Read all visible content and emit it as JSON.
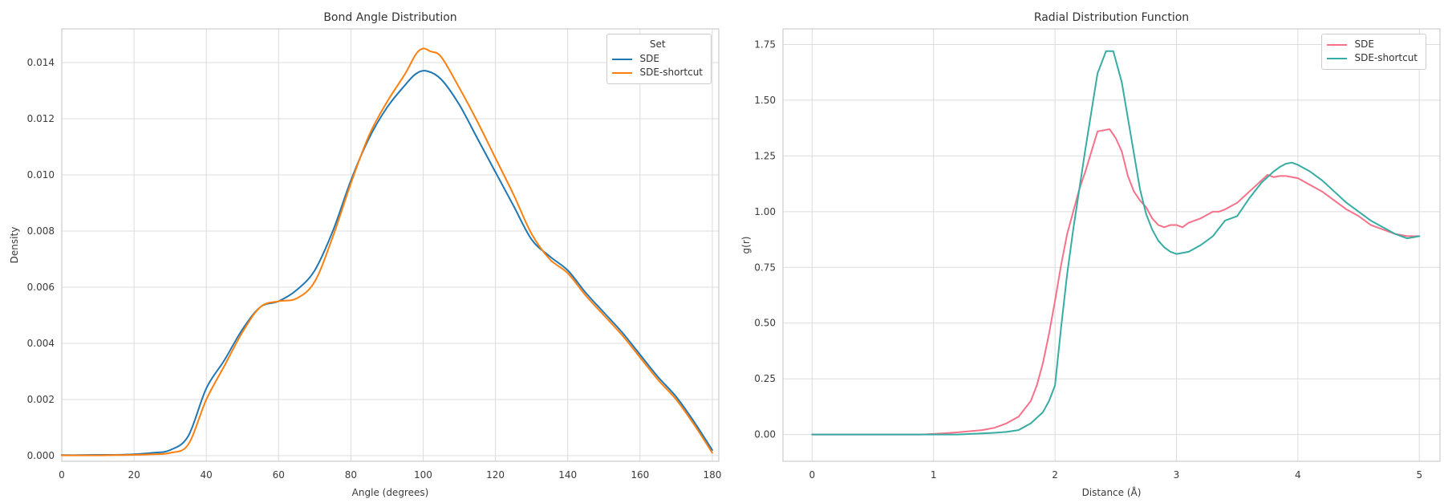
{
  "app": {
    "background": "#ffffff",
    "grid_color": "#dcdcdc",
    "spine_color": "#cccccc"
  },
  "chart_data": [
    {
      "type": "line",
      "title": "Bond Angle Distribution",
      "xlabel": "Angle (degrees)",
      "ylabel": "Density",
      "xlim": [
        0,
        181.8
      ],
      "ylim": [
        -0.0002,
        0.0152
      ],
      "grid": true,
      "smooth": true,
      "legend": {
        "title": "Set",
        "loc": "upper right",
        "entries": [
          {
            "label": "SDE",
            "color": "#1f77b4"
          },
          {
            "label": "SDE-shortcut",
            "color": "#ff7f0e"
          }
        ]
      },
      "xticks": {
        "values": [
          0,
          20,
          40,
          60,
          80,
          100,
          120,
          140,
          160,
          180
        ],
        "labels": [
          "0",
          "20",
          "40",
          "60",
          "80",
          "100",
          "120",
          "140",
          "160",
          "180"
        ]
      },
      "yticks": {
        "values": [
          0,
          0.002,
          0.004,
          0.006,
          0.008,
          0.01,
          0.012,
          0.014
        ],
        "labels": [
          "0.000",
          "0.002",
          "0.004",
          "0.006",
          "0.008",
          "0.010",
          "0.012",
          "0.014"
        ]
      },
      "series": [
        {
          "name": "SDE",
          "color": "#1f77b4",
          "x": [
            0,
            5,
            10,
            15,
            20,
            25,
            30,
            35,
            40,
            45,
            50,
            55,
            60,
            65,
            70,
            75,
            80,
            85,
            90,
            95,
            98,
            101,
            105,
            110,
            115,
            120,
            125,
            130,
            135,
            140,
            145,
            150,
            155,
            160,
            165,
            170,
            175,
            180
          ],
          "y": [
            2e-05,
            2e-05,
            3e-05,
            3e-05,
            5e-05,
            0.0001,
            0.0002,
            0.0007,
            0.0024,
            0.0034,
            0.0045,
            0.0053,
            0.0055,
            0.0059,
            0.0066,
            0.008,
            0.0098,
            0.0113,
            0.0124,
            0.0132,
            0.0136,
            0.0137,
            0.0134,
            0.0125,
            0.0113,
            0.0101,
            0.0089,
            0.0077,
            0.0071,
            0.0066,
            0.0058,
            0.0051,
            0.0044,
            0.0036,
            0.0028,
            0.0021,
            0.0012,
            0.0002
          ]
        },
        {
          "name": "SDE-shortcut",
          "color": "#ff7f0e",
          "x": [
            0,
            5,
            10,
            15,
            20,
            25,
            30,
            35,
            40,
            45,
            50,
            55,
            60,
            65,
            70,
            75,
            80,
            85,
            90,
            95,
            98,
            100,
            102,
            105,
            110,
            115,
            120,
            125,
            130,
            135,
            140,
            145,
            150,
            155,
            160,
            165,
            170,
            175,
            180
          ],
          "y": [
            1e-05,
            1e-05,
            1e-05,
            2e-05,
            3e-05,
            5e-05,
            0.0001,
            0.0004,
            0.002,
            0.0032,
            0.0044,
            0.0053,
            0.0055,
            0.0056,
            0.0062,
            0.0078,
            0.0097,
            0.0114,
            0.0126,
            0.0136,
            0.0143,
            0.0145,
            0.0144,
            0.0142,
            0.0131,
            0.0119,
            0.0106,
            0.0093,
            0.0079,
            0.007,
            0.0065,
            0.0057,
            0.005,
            0.0043,
            0.0035,
            0.0027,
            0.002,
            0.0011,
            0.0001
          ]
        }
      ]
    },
    {
      "type": "line",
      "title": "Radial Distribution Function",
      "xlabel": "Distance (Å)",
      "ylabel": "g(r)",
      "xlim": [
        -0.24,
        5.17
      ],
      "ylim": [
        -0.12,
        1.82
      ],
      "grid": true,
      "smooth": false,
      "legend": {
        "title": null,
        "loc": "upper right",
        "entries": [
          {
            "label": "SDE",
            "color": "#f7718a"
          },
          {
            "label": "SDE-shortcut",
            "color": "#36ada4"
          }
        ]
      },
      "xticks": {
        "values": [
          0,
          1,
          2,
          3,
          4,
          5
        ],
        "labels": [
          "0",
          "1",
          "2",
          "3",
          "4",
          "5"
        ]
      },
      "yticks": {
        "values": [
          0,
          0.25,
          0.5,
          0.75,
          1.0,
          1.25,
          1.5,
          1.75
        ],
        "labels": [
          "0.00",
          "0.25",
          "0.50",
          "0.75",
          "1.00",
          "1.25",
          "1.50",
          "1.75"
        ]
      },
      "series": [
        {
          "name": "SDE",
          "color": "#f7718a",
          "x": [
            0,
            0.3,
            0.6,
            0.9,
            1.0,
            1.1,
            1.2,
            1.3,
            1.4,
            1.5,
            1.6,
            1.7,
            1.8,
            1.85,
            1.9,
            1.95,
            2.0,
            2.05,
            2.1,
            2.15,
            2.2,
            2.25,
            2.3,
            2.35,
            2.45,
            2.5,
            2.55,
            2.6,
            2.65,
            2.7,
            2.75,
            2.8,
            2.85,
            2.9,
            2.95,
            3.0,
            3.05,
            3.1,
            3.15,
            3.2,
            3.3,
            3.35,
            3.4,
            3.5,
            3.6,
            3.7,
            3.75,
            3.8,
            3.85,
            3.9,
            4.0,
            4.1,
            4.2,
            4.3,
            4.4,
            4.5,
            4.6,
            4.7,
            4.8,
            4.9,
            5.0
          ],
          "y": [
            0,
            0,
            0,
            0,
            0.003,
            0.006,
            0.01,
            0.015,
            0.02,
            0.03,
            0.05,
            0.08,
            0.15,
            0.22,
            0.32,
            0.45,
            0.6,
            0.76,
            0.9,
            1.0,
            1.1,
            1.18,
            1.27,
            1.36,
            1.37,
            1.33,
            1.27,
            1.16,
            1.09,
            1.05,
            1.02,
            0.97,
            0.94,
            0.93,
            0.94,
            0.94,
            0.93,
            0.95,
            0.96,
            0.97,
            1.0,
            1.0,
            1.01,
            1.04,
            1.09,
            1.14,
            1.165,
            1.155,
            1.16,
            1.16,
            1.15,
            1.12,
            1.09,
            1.05,
            1.01,
            0.98,
            0.94,
            0.92,
            0.9,
            0.89,
            0.89
          ]
        },
        {
          "name": "SDE-shortcut",
          "color": "#36ada4",
          "x": [
            0,
            0.3,
            0.6,
            0.9,
            1.2,
            1.4,
            1.5,
            1.6,
            1.7,
            1.8,
            1.9,
            1.95,
            2.0,
            2.05,
            2.1,
            2.15,
            2.2,
            2.25,
            2.3,
            2.35,
            2.42,
            2.48,
            2.55,
            2.6,
            2.65,
            2.7,
            2.75,
            2.8,
            2.85,
            2.9,
            2.95,
            3.0,
            3.1,
            3.2,
            3.3,
            3.4,
            3.45,
            3.5,
            3.6,
            3.7,
            3.8,
            3.85,
            3.9,
            3.95,
            4.0,
            4.1,
            4.2,
            4.3,
            4.4,
            4.5,
            4.6,
            4.7,
            4.8,
            4.9,
            5.0
          ],
          "y": [
            0,
            0,
            0,
            0,
            0,
            0.005,
            0.008,
            0.012,
            0.02,
            0.05,
            0.1,
            0.15,
            0.22,
            0.48,
            0.72,
            0.92,
            1.1,
            1.28,
            1.45,
            1.62,
            1.72,
            1.72,
            1.58,
            1.42,
            1.26,
            1.1,
            0.99,
            0.92,
            0.87,
            0.84,
            0.82,
            0.81,
            0.82,
            0.85,
            0.89,
            0.96,
            0.97,
            0.98,
            1.06,
            1.13,
            1.18,
            1.2,
            1.215,
            1.22,
            1.21,
            1.18,
            1.14,
            1.09,
            1.04,
            1.0,
            0.96,
            0.93,
            0.9,
            0.88,
            0.89
          ]
        }
      ]
    }
  ]
}
